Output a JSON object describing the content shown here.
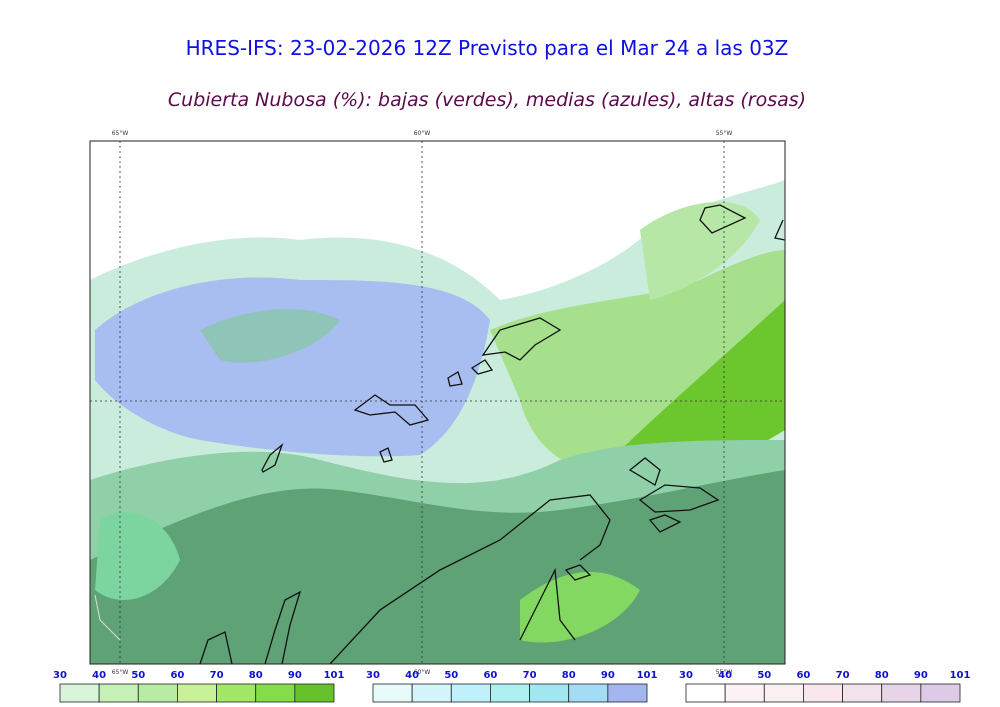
{
  "header": {
    "title": "HRES-IFS: 23-02-2026 12Z Previsto para el Mar 24 a las 03Z",
    "subtitle": "Cubierta Nubosa (%): bajas (verdes), medias (azules), altas (rosas)"
  },
  "map": {
    "longitude_labels_top": [
      "65°W",
      "60°W",
      "55°W"
    ],
    "longitude_labels_bottom": [
      "65°W",
      "60°W",
      "55°W"
    ]
  },
  "colorbars": [
    {
      "labels": [
        30,
        40,
        50,
        60,
        70,
        80,
        90,
        101
      ],
      "colors": [
        "#d9f5d9",
        "#c6f0b6",
        "#b8eca2",
        "#c9f198",
        "#a2e766",
        "#84dd48",
        "#66c22a"
      ]
    },
    {
      "labels": [
        30,
        40,
        50,
        60,
        70,
        80,
        90,
        101
      ],
      "colors": [
        "#e8fbfb",
        "#d4f6fa",
        "#c0f1fa",
        "#acf1f0",
        "#a2e6ef",
        "#a2dcf5",
        "#a3b6f0"
      ]
    },
    {
      "labels": [
        30,
        40,
        50,
        60,
        70,
        80,
        90,
        101
      ],
      "colors": [
        "#ffffff",
        "#fcf2f5",
        "#faf0f2",
        "#fae7ee",
        "#f1e2ec",
        "#e7d4e7",
        "#ddcae6"
      ]
    }
  ]
}
